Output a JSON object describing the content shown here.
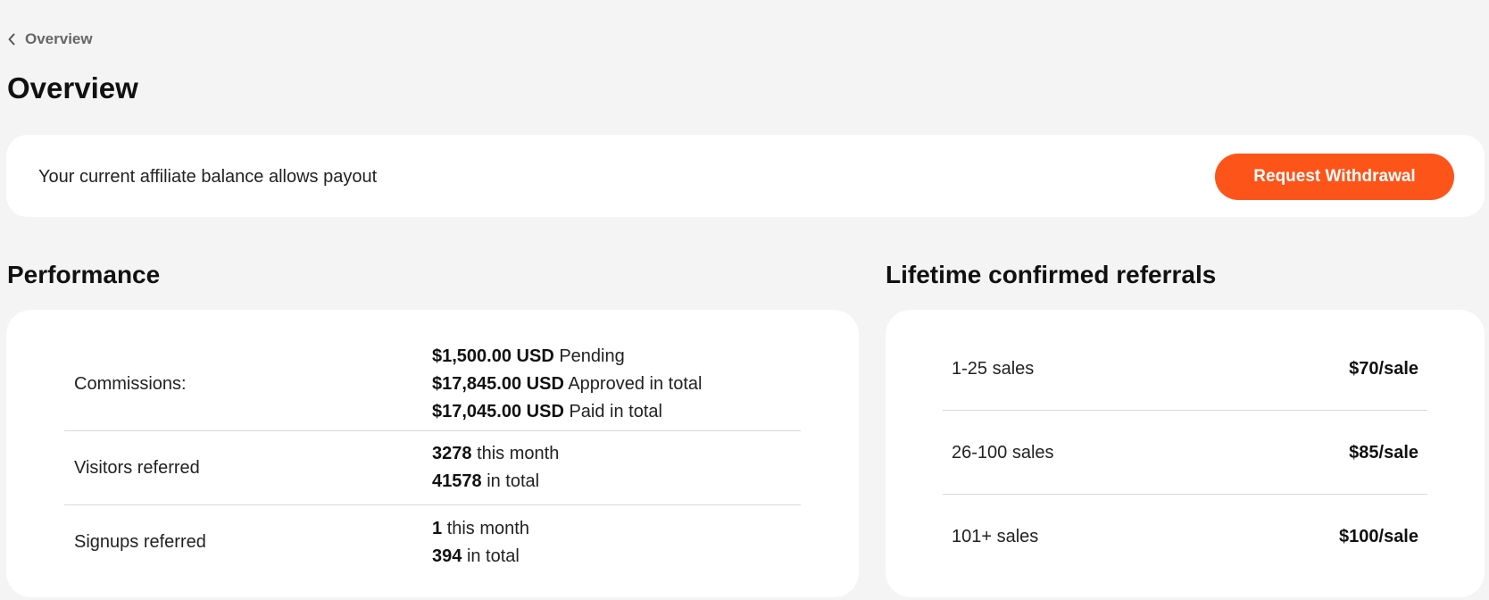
{
  "breadcrumb": {
    "label": "Overview"
  },
  "page": {
    "title": "Overview"
  },
  "balance": {
    "message": "Your current affiliate balance allows payout",
    "button_label": "Request Withdrawal",
    "accent_color": "#fd5419"
  },
  "performance": {
    "title": "Performance",
    "rows": [
      {
        "label": "Commissions:",
        "values": [
          {
            "amount": "$1,500.00 USD",
            "suffix": "Pending"
          },
          {
            "amount": "$17,845.00 USD",
            "suffix": "Approved in total"
          },
          {
            "amount": "$17,045.00 USD",
            "suffix": "Paid in total"
          }
        ]
      },
      {
        "label": "Visitors referred",
        "values": [
          {
            "amount": "3278",
            "suffix": "this month"
          },
          {
            "amount": "41578",
            "suffix": "in total"
          }
        ]
      },
      {
        "label": "Signups referred",
        "values": [
          {
            "amount": "1",
            "suffix": "this month"
          },
          {
            "amount": "394",
            "suffix": "in total"
          }
        ]
      }
    ]
  },
  "lifetime": {
    "title": "Lifetime confirmed referrals",
    "tiers": [
      {
        "label": "1-25 sales",
        "rate": "$70/sale"
      },
      {
        "label": "26-100 sales",
        "rate": "$85/sale"
      },
      {
        "label": "101+ sales",
        "rate": "$100/sale"
      }
    ]
  }
}
